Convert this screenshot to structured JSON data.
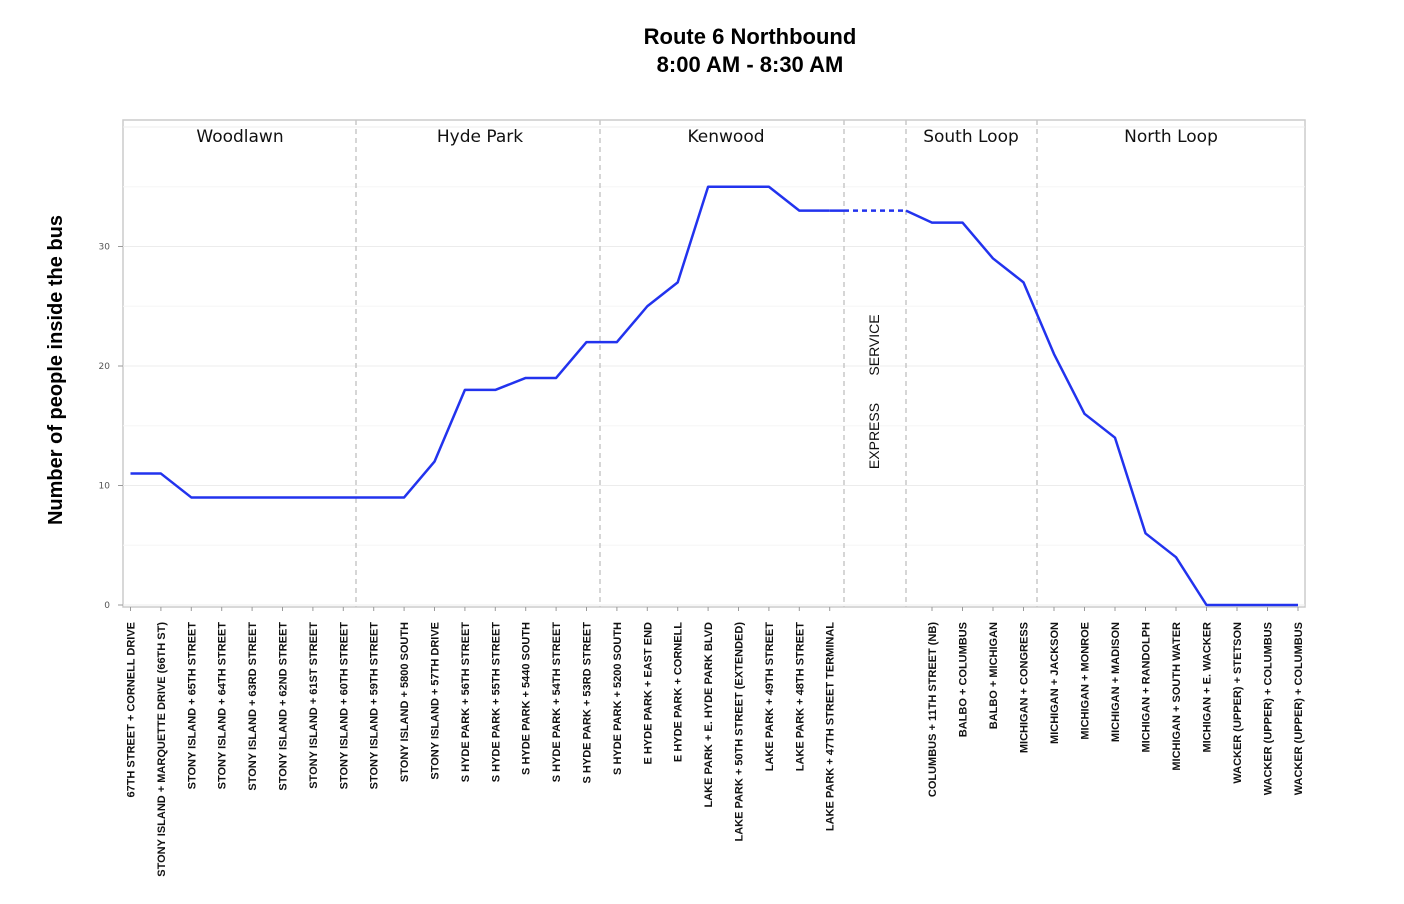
{
  "chart_data": {
    "type": "line",
    "title": "Route 6   Northbound",
    "subtitle": "8:00 AM - 8:30 AM",
    "ylabel": "Number of people inside the bus",
    "xlabel": "",
    "ylim": [
      0,
      40
    ],
    "yticks": [
      0,
      10,
      20,
      30
    ],
    "grid": true,
    "line_color": "#2233ee",
    "express_label": {
      "part1": "EXPRESS",
      "part2": "SERVICE"
    },
    "regions": [
      {
        "name": "Woodlawn"
      },
      {
        "name": "Hyde Park"
      },
      {
        "name": "Kenwood"
      },
      {
        "name": "South Loop"
      },
      {
        "name": "North Loop"
      }
    ],
    "stops_before_express": [
      "67TH STREET + CORNELL DRIVE",
      "STONY ISLAND + MARQUETTE DRIVE (66TH ST)",
      "STONY ISLAND + 65TH STREET",
      "STONY ISLAND + 64TH STREET",
      "STONY ISLAND + 63RD STREET",
      "STONY ISLAND + 62ND STREET",
      "STONY ISLAND + 61ST STREET",
      "STONY ISLAND + 60TH STREET",
      "STONY ISLAND + 59TH STREET",
      "STONY ISLAND + 5800 SOUTH",
      "STONY ISLAND + 57TH DRIVE",
      "S HYDE PARK + 56TH STREET",
      "S HYDE PARK + 55TH STREET",
      "S HYDE PARK + 5440 SOUTH",
      "S HYDE PARK + 54TH STREET",
      "S HYDE PARK + 53RD STREET",
      "S HYDE PARK + 5200 SOUTH",
      "E HYDE PARK + EAST END",
      "E HYDE PARK + CORNELL",
      "LAKE PARK + E. HYDE PARK BLVD",
      "LAKE PARK + 50TH STREET (EXTENDED)",
      "LAKE PARK + 49TH STREET",
      "LAKE PARK + 48TH STREET",
      "LAKE PARK + 47TH STREET TERMINAL"
    ],
    "values_before_express": [
      11,
      11,
      9,
      9,
      9,
      9,
      9,
      9,
      9,
      9,
      12,
      18,
      18,
      19,
      19,
      22,
      22,
      25,
      27,
      35,
      35,
      35,
      33,
      33
    ],
    "stops_after_express": [
      "COLUMBUS + 11TH STREET (NB)",
      "BALBO + COLUMBUS",
      "BALBO + MICHIGAN",
      "MICHIGAN + CONGRESS",
      "MICHIGAN + JACKSON",
      "MICHIGAN + MONROE",
      "MICHIGAN + MADISON",
      "MICHIGAN + RANDOLPH",
      "MICHIGAN + SOUTH WATER",
      "MICHIGAN + E. WACKER",
      "WACKER (UPPER) + STETSON",
      "WACKER (UPPER) + COLUMBUS",
      "WACKER (UPPER) + COLUMBUS"
    ],
    "values_after_express": [
      32,
      32,
      29,
      27,
      21,
      16,
      14,
      6,
      4,
      0,
      0,
      0,
      0
    ]
  }
}
